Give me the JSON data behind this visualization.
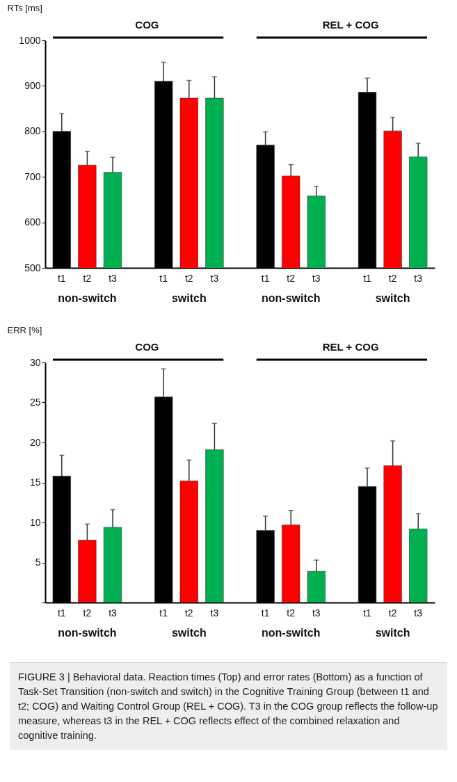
{
  "chart_data": [
    {
      "type": "bar",
      "ylabel": "RTs [ms]",
      "categories": [
        "t1",
        "t2",
        "t3",
        "t1",
        "t2",
        "t3",
        "t1",
        "t2",
        "t3",
        "t1",
        "t2",
        "t3"
      ],
      "values": [
        800,
        726,
        710,
        910,
        873,
        873,
        770,
        702,
        658,
        886,
        801,
        744
      ],
      "errors": [
        [
          800,
          839
        ],
        [
          726,
          756
        ],
        [
          710,
          743
        ],
        [
          910,
          952
        ],
        [
          873,
          912
        ],
        [
          873,
          920
        ],
        [
          770,
          799
        ],
        [
          702,
          727
        ],
        [
          658,
          679
        ],
        [
          886,
          917
        ],
        [
          801,
          831
        ],
        [
          744,
          774
        ]
      ],
      "colors": [
        "#000000",
        "#ff0000",
        "#00b050",
        "#000000",
        "#ff0000",
        "#00b050",
        "#000000",
        "#ff0000",
        "#00b050",
        "#000000",
        "#ff0000",
        "#00b050"
      ],
      "ylim": [
        500,
        1000
      ],
      "yticks": [
        500,
        600,
        700,
        800,
        900,
        1000
      ],
      "annotations": [
        "COG",
        "REL + COG",
        "non-switch",
        "switch",
        "non-switch",
        "switch"
      ]
    },
    {
      "type": "bar",
      "ylabel": "ERR [%]",
      "categories": [
        "t1",
        "t2",
        "t3",
        "t1",
        "t2",
        "t3",
        "t1",
        "t2",
        "t3",
        "t1",
        "t2",
        "t3"
      ],
      "values": [
        15.8,
        7.8,
        9.4,
        25.7,
        15.2,
        19.1,
        9.0,
        9.7,
        3.9,
        14.5,
        17.1,
        9.2
      ],
      "errors": [
        [
          15.8,
          18.4
        ],
        [
          7.8,
          9.8
        ],
        [
          9.4,
          11.6
        ],
        [
          25.7,
          29.2
        ],
        [
          15.2,
          17.8
        ],
        [
          19.1,
          22.4
        ],
        [
          9.0,
          10.8
        ],
        [
          9.7,
          11.5
        ],
        [
          3.9,
          5.3
        ],
        [
          14.5,
          16.8
        ],
        [
          17.1,
          20.2
        ],
        [
          9.2,
          11.1
        ]
      ],
      "colors": [
        "#000000",
        "#ff0000",
        "#00b050",
        "#000000",
        "#ff0000",
        "#00b050",
        "#000000",
        "#ff0000",
        "#00b050",
        "#000000",
        "#ff0000",
        "#00b050"
      ],
      "ylim": [
        0,
        30
      ],
      "yticks": [
        {
          "value": 0,
          "label": null
        },
        5,
        10,
        15,
        20,
        25,
        30
      ],
      "annotations": [
        "COG",
        "REL + COG",
        "non-switch",
        "switch",
        "non-switch",
        "switch",
        "FIGURE 3 | Behavioral data. Reaction times (Top) and error rates (Bottom) as a function of Task-Set Transition (non-switch and switch) in the Cognitive Training Group (between t1 and t2; COG) and Waiting Control Group (REL + COG). T3 in the COG group reflects the follow-up measure, whereas t3 in the REL + COG reflects effect of the combined relaxation and cognitive training."
      ]
    }
  ]
}
